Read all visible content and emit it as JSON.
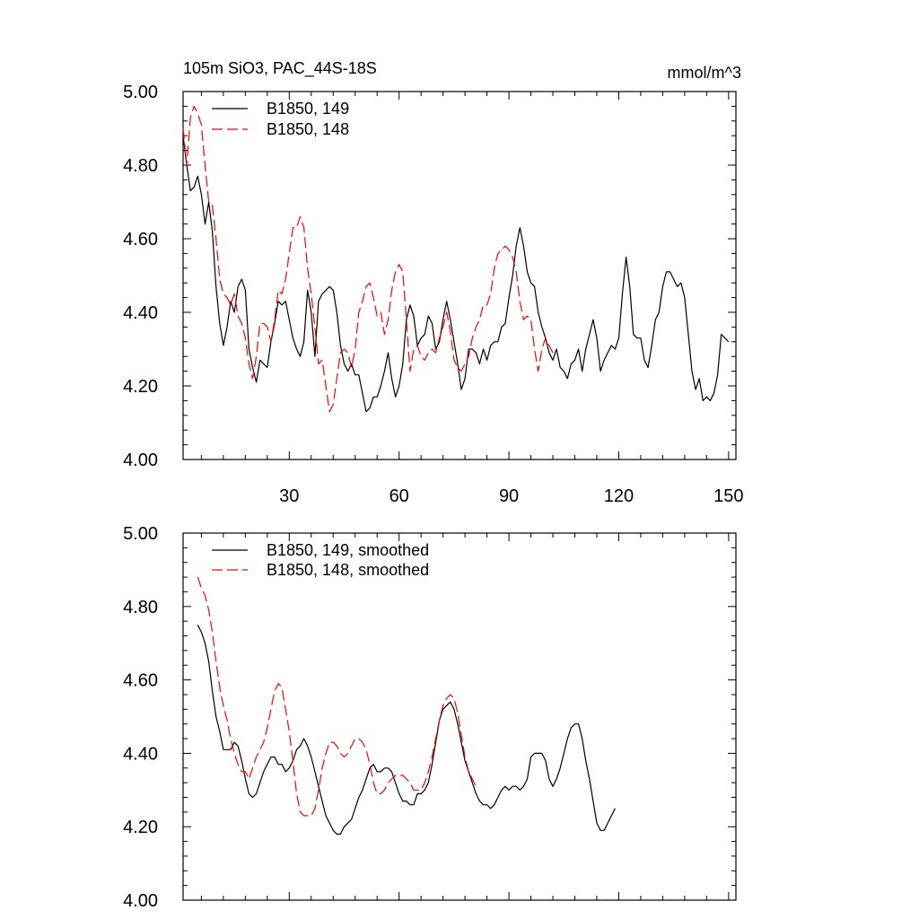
{
  "chart_data": [
    {
      "type": "line",
      "title": "105m SiO3, PAC_44S-18S",
      "units": "mmol/m^3",
      "xlabel": "",
      "ylabel": "",
      "xlim": [
        1,
        152
      ],
      "ylim": [
        4.0,
        5.0
      ],
      "x_ticks": [
        30,
        60,
        90,
        120,
        150
      ],
      "x_tick_labels": [
        "30",
        "60",
        "90",
        "120",
        "150"
      ],
      "y_ticks": [
        4.0,
        4.2,
        4.4,
        4.6,
        4.8,
        5.0
      ],
      "y_tick_labels": [
        "4.00",
        "4.20",
        "4.40",
        "4.60",
        "4.80",
        "5.00"
      ],
      "legend_position": "top-left",
      "series": [
        {
          "name": "B1850, 149",
          "color": "#000000",
          "dash": "solid",
          "x_start": 1,
          "values": [
            4.88,
            4.8,
            4.73,
            4.74,
            4.77,
            4.72,
            4.64,
            4.7,
            4.62,
            4.47,
            4.37,
            4.31,
            4.36,
            4.43,
            4.4,
            4.47,
            4.49,
            4.46,
            4.3,
            4.25,
            4.21,
            4.27,
            4.26,
            4.25,
            4.32,
            4.37,
            4.43,
            4.42,
            4.43,
            4.38,
            4.33,
            4.3,
            4.28,
            4.32,
            4.46,
            4.4,
            4.28,
            4.43,
            4.45,
            4.46,
            4.47,
            4.46,
            4.4,
            4.31,
            4.26,
            4.24,
            4.26,
            4.23,
            4.23,
            4.18,
            4.13,
            4.14,
            4.17,
            4.17,
            4.2,
            4.24,
            4.29,
            4.22,
            4.17,
            4.2,
            4.26,
            4.38,
            4.42,
            4.39,
            4.31,
            4.33,
            4.34,
            4.39,
            4.37,
            4.3,
            4.32,
            4.38,
            4.43,
            4.38,
            4.32,
            4.26,
            4.19,
            4.22,
            4.3,
            4.3,
            4.29,
            4.26,
            4.3,
            4.27,
            4.31,
            4.32,
            4.32,
            4.36,
            4.37,
            4.44,
            4.5,
            4.58,
            4.63,
            4.58,
            4.51,
            4.48,
            4.47,
            4.4,
            4.36,
            4.33,
            4.29,
            4.27,
            4.3,
            4.25,
            4.24,
            4.22,
            4.26,
            4.27,
            4.3,
            4.24,
            4.3,
            4.34,
            4.38,
            4.33,
            4.24,
            4.27,
            4.29,
            4.31,
            4.3,
            4.33,
            4.45,
            4.55,
            4.47,
            4.34,
            4.33,
            4.33,
            4.27,
            4.25,
            4.31,
            4.38,
            4.4,
            4.47,
            4.51,
            4.51,
            4.49,
            4.47,
            4.48,
            4.44,
            4.34,
            4.24,
            4.19,
            4.22,
            4.16,
            4.17,
            4.16,
            4.18,
            4.23,
            4.34,
            4.33,
            4.32
          ]
        },
        {
          "name": "B1850, 148",
          "color": "#ff0000",
          "dash": "dashed",
          "x_start": 1,
          "values": [
            4.9,
            4.8,
            4.93,
            4.96,
            4.94,
            4.91,
            4.8,
            4.7,
            4.69,
            4.6,
            4.49,
            4.45,
            4.44,
            4.42,
            4.45,
            4.39,
            4.37,
            4.33,
            4.26,
            4.22,
            4.28,
            4.37,
            4.37,
            4.36,
            4.32,
            4.38,
            4.46,
            4.45,
            4.49,
            4.56,
            4.63,
            4.63,
            4.66,
            4.63,
            4.52,
            4.45,
            4.36,
            4.26,
            4.27,
            4.2,
            4.13,
            4.15,
            4.22,
            4.29,
            4.3,
            4.29,
            4.25,
            4.3,
            4.4,
            4.43,
            4.47,
            4.48,
            4.44,
            4.39,
            4.4,
            4.34,
            4.38,
            4.46,
            4.51,
            4.53,
            4.51,
            4.38,
            4.24,
            4.3,
            4.31,
            4.28,
            4.27,
            4.29,
            4.3,
            4.29,
            4.33,
            4.36,
            4.4,
            4.35,
            4.27,
            4.25,
            4.24,
            4.26,
            4.28,
            4.33,
            4.36,
            4.38,
            4.42,
            4.42,
            4.45,
            4.52,
            4.56,
            4.57,
            4.58,
            4.57,
            4.55,
            4.51,
            4.43,
            4.38,
            4.39,
            4.38,
            4.3,
            4.24,
            4.3,
            4.33,
            4.31,
            4.29
          ]
        }
      ]
    },
    {
      "type": "line",
      "title": "",
      "xlabel": "",
      "ylabel": "",
      "xlim": [
        1,
        152
      ],
      "ylim": [
        4.0,
        5.0
      ],
      "x_ticks": [
        30,
        60,
        90,
        120,
        150
      ],
      "x_tick_labels": [],
      "y_ticks": [
        4.0,
        4.2,
        4.4,
        4.6,
        4.8,
        5.0
      ],
      "y_tick_labels": [
        "4.00",
        "4.20",
        "4.40",
        "4.60",
        "4.80",
        "5.00"
      ],
      "legend_position": "top-left",
      "series": [
        {
          "name": "B1850, 149, smoothed",
          "color": "#000000",
          "dash": "solid",
          "x_start": 5,
          "values": [
            4.75,
            4.73,
            4.7,
            4.65,
            4.57,
            4.5,
            4.46,
            4.41,
            4.41,
            4.41,
            4.43,
            4.42,
            4.38,
            4.33,
            4.29,
            4.28,
            4.29,
            4.32,
            4.35,
            4.37,
            4.39,
            4.39,
            4.37,
            4.37,
            4.35,
            4.36,
            4.38,
            4.41,
            4.42,
            4.44,
            4.42,
            4.39,
            4.35,
            4.31,
            4.27,
            4.23,
            4.21,
            4.19,
            4.18,
            4.18,
            4.2,
            4.21,
            4.22,
            4.25,
            4.28,
            4.3,
            4.33,
            4.36,
            4.37,
            4.35,
            4.35,
            4.36,
            4.36,
            4.35,
            4.32,
            4.29,
            4.27,
            4.27,
            4.26,
            4.26,
            4.29,
            4.29,
            4.3,
            4.32,
            4.37,
            4.43,
            4.49,
            4.52,
            4.53,
            4.54,
            4.52,
            4.48,
            4.43,
            4.38,
            4.35,
            4.32,
            4.29,
            4.27,
            4.26,
            4.26,
            4.25,
            4.26,
            4.28,
            4.3,
            4.31,
            4.3,
            4.31,
            4.31,
            4.3,
            4.31,
            4.33,
            4.39,
            4.4,
            4.4,
            4.4,
            4.38,
            4.33,
            4.31,
            4.33,
            4.36,
            4.4,
            4.44,
            4.47,
            4.48,
            4.48,
            4.44,
            4.38,
            4.33,
            4.27,
            4.21,
            4.19,
            4.19,
            4.21,
            4.23,
            4.25
          ]
        },
        {
          "name": "B1850, 148, smoothed",
          "color": "#ff0000",
          "dash": "dashed",
          "x_start": 5,
          "values": [
            4.88,
            4.85,
            4.83,
            4.79,
            4.73,
            4.65,
            4.58,
            4.53,
            4.49,
            4.44,
            4.4,
            4.37,
            4.35,
            4.35,
            4.33,
            4.36,
            4.39,
            4.41,
            4.43,
            4.47,
            4.52,
            4.57,
            4.59,
            4.58,
            4.52,
            4.46,
            4.38,
            4.29,
            4.24,
            4.23,
            4.23,
            4.23,
            4.25,
            4.3,
            4.36,
            4.4,
            4.43,
            4.43,
            4.42,
            4.4,
            4.39,
            4.4,
            4.42,
            4.44,
            4.44,
            4.43,
            4.41,
            4.37,
            4.32,
            4.29,
            4.29,
            4.3,
            4.32,
            4.33,
            4.34,
            4.34,
            4.34,
            4.33,
            4.32,
            4.3,
            4.3,
            4.3,
            4.32,
            4.35,
            4.39,
            4.44,
            4.49,
            4.53,
            4.55,
            4.56,
            4.55,
            4.51,
            4.45,
            4.39,
            4.35,
            4.33,
            4.31
          ]
        }
      ]
    }
  ]
}
